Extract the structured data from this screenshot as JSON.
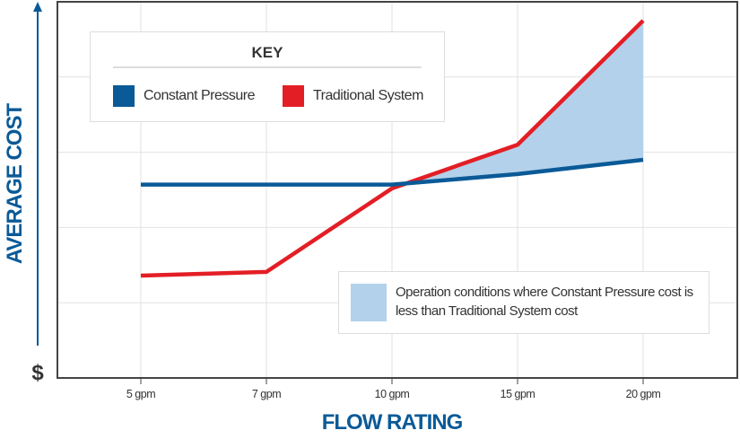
{
  "chart_data": {
    "type": "line",
    "title": "",
    "xlabel": "FLOW RATING",
    "ylabel": "AVERAGE COST",
    "y_axis_origin_label": "$",
    "categories": [
      "5 gpm",
      "7 gpm",
      "10 gpm",
      "15 gpm",
      "20 gpm"
    ],
    "ylim": [
      0,
      5
    ],
    "grid": true,
    "series": [
      {
        "name": "Constant Pressure",
        "color": "#0a5a97",
        "values": [
          2.57,
          2.57,
          2.57,
          2.71,
          2.9
        ]
      },
      {
        "name": "Traditional System",
        "color": "#e31e25",
        "values": [
          1.36,
          1.41,
          2.52,
          3.1,
          4.75
        ]
      }
    ],
    "shaded_region": {
      "color": "#b3d1ea",
      "label": "Operation conditions where Constant Pressure cost is less than Traditional System cost"
    },
    "legend": {
      "title": "KEY",
      "placement": "top-left"
    }
  }
}
